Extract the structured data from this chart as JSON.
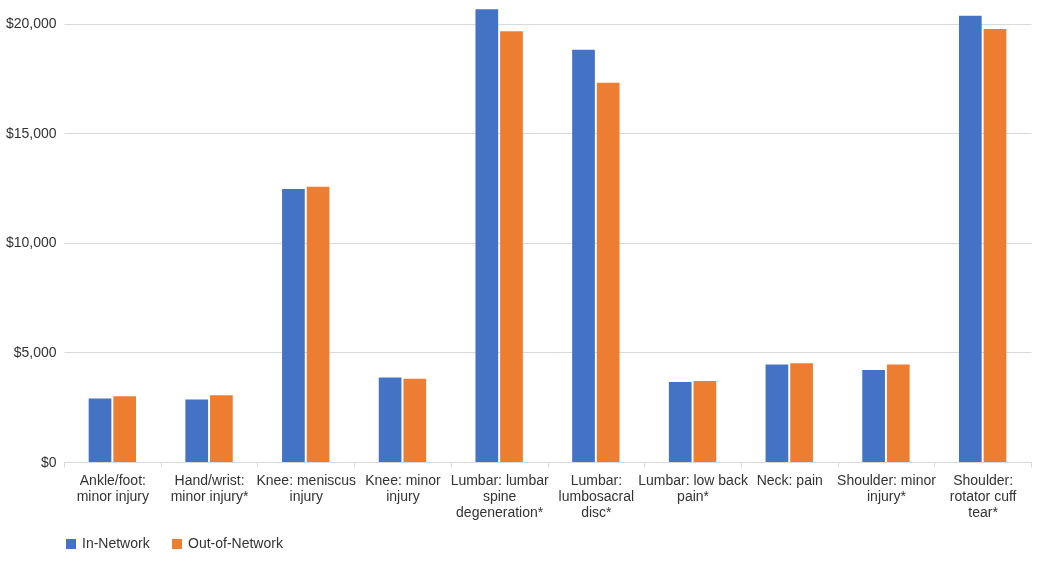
{
  "chart_data": {
    "type": "bar",
    "categories": [
      "Ankle/foot: minor injury",
      "Hand/wrist: minor injury*",
      "Knee: meniscus injury",
      "Knee: minor injury",
      "Lumbar: lumbar spine degeneration*",
      "Lumbar: lumbosacral disc*",
      "Lumbar: low back pain*",
      "Neck: pain",
      "Shoulder: minor injury*",
      "Shoulder: rotator cuff tear*"
    ],
    "series": [
      {
        "name": "In-Network",
        "color": "#4472c4",
        "values": [
          2900,
          2850,
          12450,
          3850,
          20650,
          18800,
          3650,
          4450,
          4200,
          20350
        ]
      },
      {
        "name": "Out-of-Network",
        "color": "#ed7d31",
        "values": [
          3000,
          3050,
          12550,
          3800,
          19650,
          17300,
          3700,
          4500,
          4450,
          19750
        ]
      }
    ],
    "ylim": [
      0,
      20800
    ],
    "yticks": [
      {
        "value": 0,
        "label": "$0"
      },
      {
        "value": 5000,
        "label": "$5,000"
      },
      {
        "value": 10000,
        "label": "$10,000"
      },
      {
        "value": 15000,
        "label": "$15,000"
      },
      {
        "value": 20000,
        "label": "$20,000"
      }
    ],
    "grid": "y",
    "legend": "bottom"
  }
}
